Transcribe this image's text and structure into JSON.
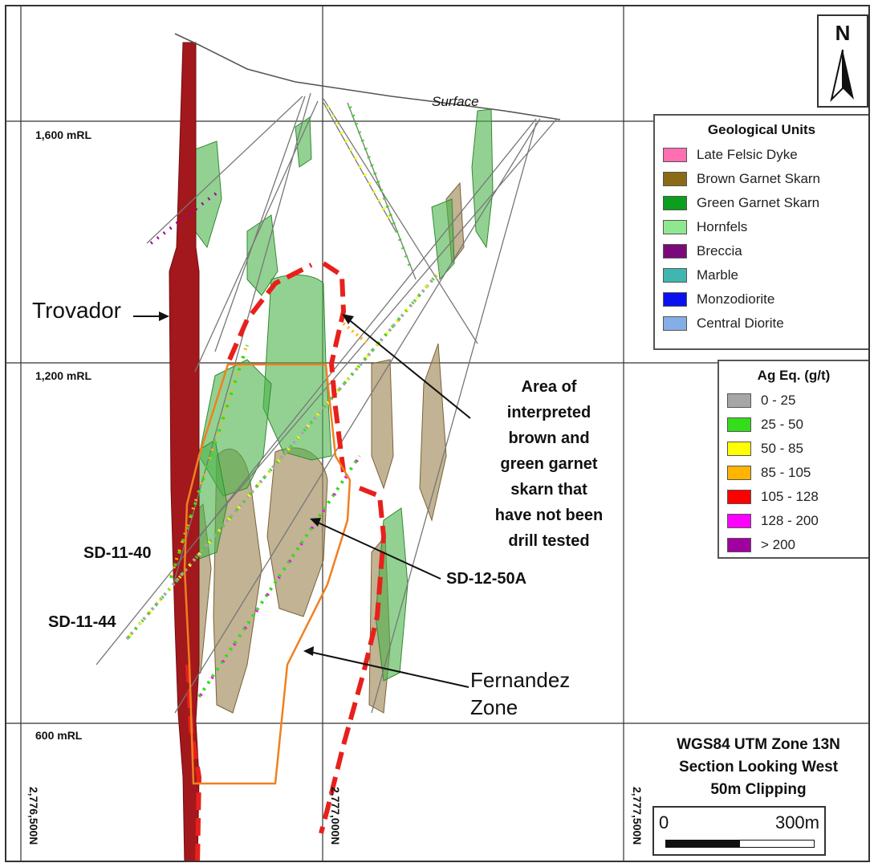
{
  "north_arrow": {
    "letter": "N"
  },
  "elevations": [
    {
      "label": "1,600 mRL"
    },
    {
      "label": "1,200 mRL"
    },
    {
      "label": "600 mRL"
    }
  ],
  "northings": [
    {
      "label": "2,776,500N"
    },
    {
      "label": "2,777,000N"
    },
    {
      "label": "2,777,500N"
    }
  ],
  "surface_label": "Surface",
  "callouts": {
    "trovador": "Trovador",
    "sd_11_40": "SD-11-40",
    "sd_11_44": "SD-11-44",
    "sd_12_50a": "SD-12-50A",
    "area_note": [
      "Area of",
      "interpreted",
      "brown and",
      "green garnet",
      "skarn that",
      "have not been",
      "drill tested"
    ],
    "fernandez": [
      "Fernandez",
      "Zone"
    ]
  },
  "geological_units": {
    "title": "Geological Units",
    "items": [
      {
        "label": "Late Felsic Dyke",
        "color": "#ff6fb1"
      },
      {
        "label": "Brown Garnet Skarn",
        "color": "#8a6a14"
      },
      {
        "label": "Green Garnet Skarn",
        "color": "#0b9e1f"
      },
      {
        "label": "Hornfels",
        "color": "#8fe88f"
      },
      {
        "label": "Breccia",
        "color": "#7a0a7a"
      },
      {
        "label": "Marble",
        "color": "#3fb6b0"
      },
      {
        "label": "Monzodiorite",
        "color": "#0a10ee"
      },
      {
        "label": "Central Diorite",
        "color": "#84aee6"
      }
    ]
  },
  "ag_eq": {
    "title": "Ag Eq. (g/t)",
    "items": [
      {
        "label": "0 - 25",
        "color": "#a6a6a6"
      },
      {
        "label": "25 - 50",
        "color": "#33dd1a"
      },
      {
        "label": "50 - 85",
        "color": "#ffff00"
      },
      {
        "label": "85 - 105",
        "color": "#ffb400"
      },
      {
        "label": "105 - 128",
        "color": "#ff0000"
      },
      {
        "label": "128 - 200",
        "color": "#ff00ff"
      },
      {
        "label": "> 200",
        "color": "#a000a0"
      }
    ]
  },
  "projection_info": [
    "WGS84 UTM Zone 13N",
    "Section Looking West",
    "50m Clipping"
  ],
  "scale_bar": {
    "start": "0",
    "end": "300m"
  }
}
